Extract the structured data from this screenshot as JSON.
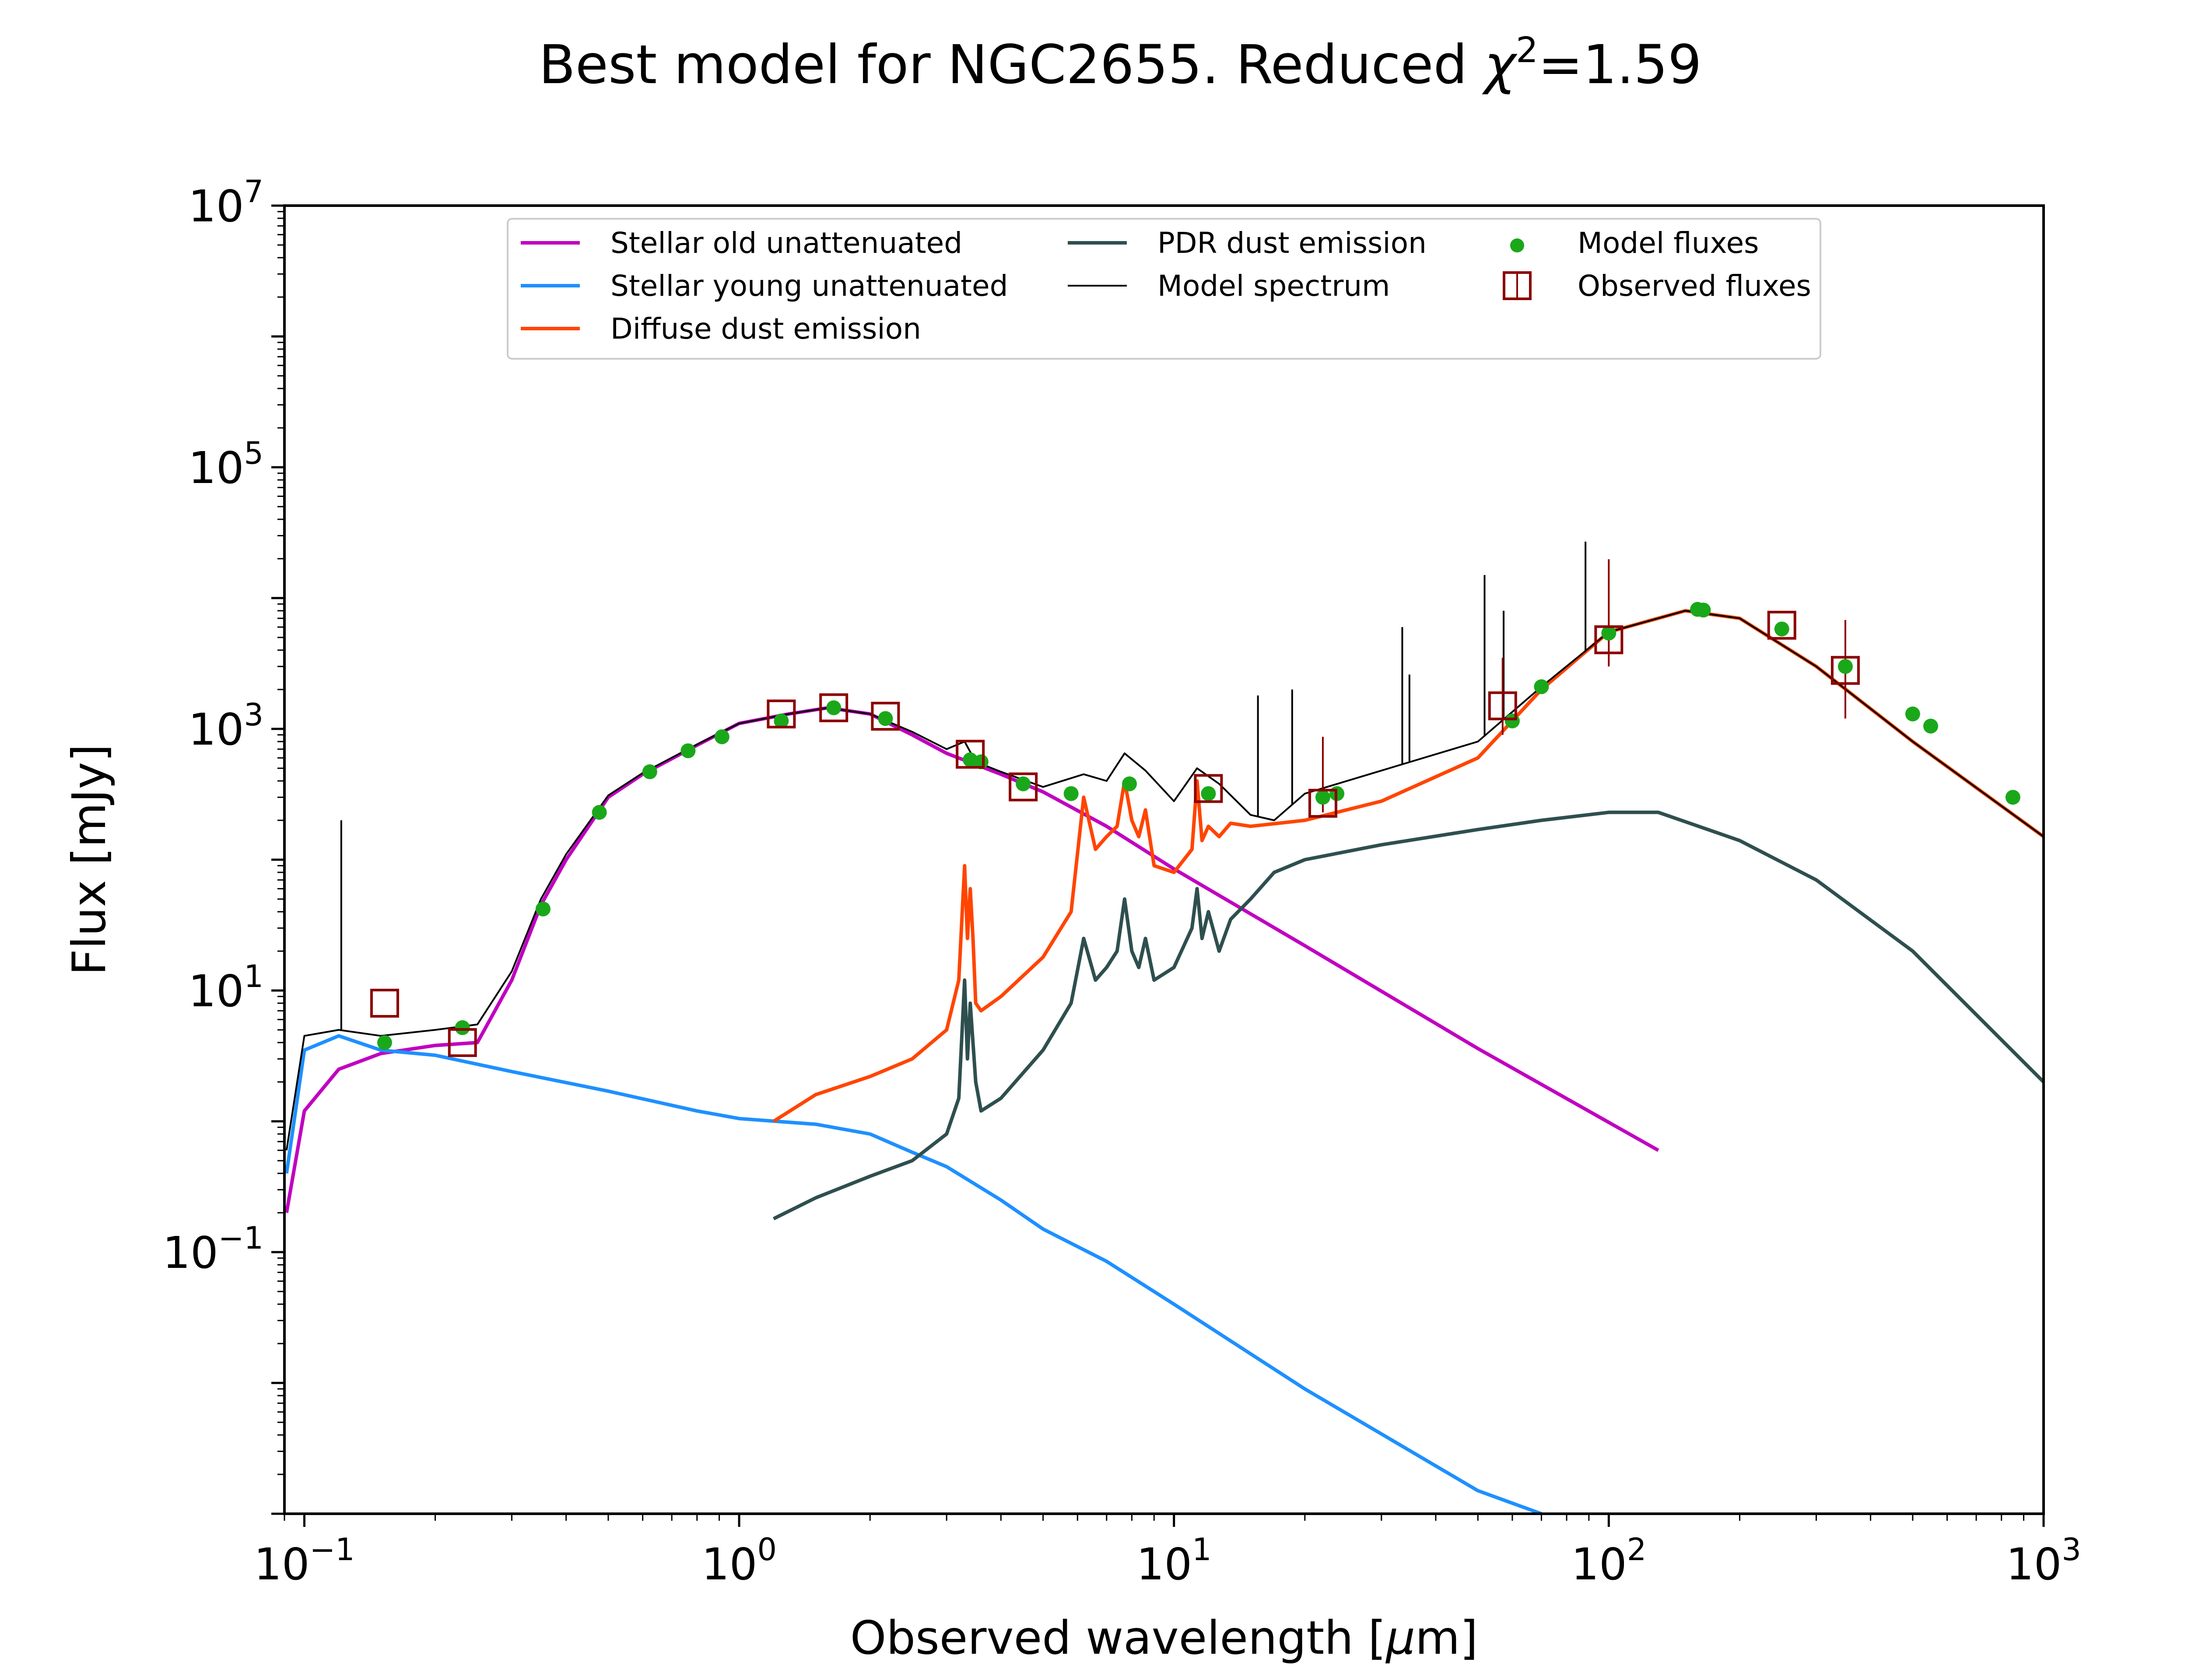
{
  "chart_data": {
    "type": "line",
    "title": "Best model for NGC2655. Reduced χ²=1.59",
    "title_parts": {
      "main": "Best model for NGC2655. Reduced ",
      "chi": "χ",
      "sup": "2",
      "tail": "=1.59"
    },
    "xlabel": "Observed wavelength [μm]",
    "xlabel_parts": {
      "pre": "Observed wavelength [",
      "mu": "μ",
      "post": "m]"
    },
    "ylabel": "Flux [mJy]",
    "x_scale": "log",
    "y_scale": "log",
    "xlim": [
      0.09,
      1000
    ],
    "ylim": [
      0.001,
      10000000
    ],
    "x_ticks": [
      {
        "base": "10",
        "exp": "−1",
        "value": 0.1
      },
      {
        "base": "10",
        "exp": "0",
        "value": 1
      },
      {
        "base": "10",
        "exp": "1",
        "value": 10
      },
      {
        "base": "10",
        "exp": "2",
        "value": 100
      },
      {
        "base": "10",
        "exp": "3",
        "value": 1000
      }
    ],
    "y_ticks": [
      {
        "base": "10",
        "exp": "−1",
        "value": 0.1
      },
      {
        "base": "10",
        "exp": "1",
        "value": 10
      },
      {
        "base": "10",
        "exp": "3",
        "value": 1000
      },
      {
        "base": "10",
        "exp": "5",
        "value": 100000
      },
      {
        "base": "10",
        "exp": "7",
        "value": 10000000
      }
    ],
    "legend_position": "top-center",
    "legend": [
      {
        "label": "Stellar old unattenuated",
        "marker": "line",
        "color": "#c000c0"
      },
      {
        "label": "Stellar young unattenuated",
        "marker": "line",
        "color": "#1e90ff"
      },
      {
        "label": "Diffuse dust emission",
        "marker": "line",
        "color": "#ff4500"
      },
      {
        "label": "PDR dust emission",
        "marker": "line",
        "color": "#2f4f4f"
      },
      {
        "label": "Model spectrum",
        "marker": "thin-line",
        "color": "#000000"
      },
      {
        "label": "Model fluxes",
        "marker": "dot",
        "color": "#1aa81a"
      },
      {
        "label": "Observed fluxes",
        "marker": "square",
        "color": "#8b0000"
      }
    ],
    "series": [
      {
        "name": "Stellar old unattenuated",
        "color": "#c000c0",
        "x": [
          0.091,
          0.1,
          0.12,
          0.15,
          0.2,
          0.25,
          0.3,
          0.35,
          0.4,
          0.5,
          0.6,
          0.8,
          1.0,
          1.3,
          1.6,
          2.0,
          2.5,
          3.0,
          4.0,
          5.0,
          7.0,
          10,
          20,
          50,
          130
        ],
        "y": [
          0.2,
          1.2,
          2.5,
          3.3,
          3.8,
          4.0,
          12,
          45,
          100,
          300,
          450,
          750,
          1100,
          1300,
          1450,
          1300,
          900,
          650,
          450,
          330,
          180,
          85,
          22,
          3.6,
          0.6
        ]
      },
      {
        "name": "Stellar young unattenuated",
        "color": "#1e90ff",
        "x": [
          0.091,
          0.1,
          0.12,
          0.15,
          0.2,
          0.3,
          0.5,
          0.8,
          1.0,
          1.5,
          2.0,
          2.5,
          3.0,
          4.0,
          5.0,
          7.0,
          10,
          20,
          50,
          70
        ],
        "y": [
          0.4,
          3.5,
          4.5,
          3.5,
          3.2,
          2.4,
          1.7,
          1.2,
          1.05,
          0.95,
          0.8,
          0.58,
          0.45,
          0.25,
          0.15,
          0.085,
          0.04,
          0.009,
          0.0015,
          0.001
        ]
      },
      {
        "name": "Diffuse dust emission",
        "color": "#ff4500",
        "x": [
          1.2,
          1.5,
          2.0,
          2.5,
          3.0,
          3.2,
          3.3,
          3.35,
          3.4,
          3.45,
          3.5,
          3.6,
          4.0,
          5.0,
          5.8,
          6.2,
          6.6,
          7.0,
          7.4,
          7.7,
          8.0,
          8.3,
          8.6,
          9.0,
          10.0,
          11.0,
          11.3,
          11.6,
          12.0,
          12.7,
          13.5,
          15,
          20,
          30,
          50,
          70,
          100,
          150,
          200,
          300,
          500,
          1000
        ],
        "y": [
          1.0,
          1.6,
          2.2,
          3.0,
          5,
          12,
          90,
          25,
          60,
          25,
          8,
          7,
          9,
          18,
          40,
          300,
          120,
          150,
          180,
          400,
          200,
          150,
          240,
          90,
          80,
          120,
          400,
          140,
          180,
          150,
          190,
          180,
          200,
          280,
          600,
          2000,
          5500,
          8000,
          7000,
          3000,
          800,
          150
        ]
      },
      {
        "name": "PDR dust emission",
        "color": "#2f4f4f",
        "x": [
          1.2,
          1.5,
          2.0,
          2.5,
          3.0,
          3.2,
          3.3,
          3.35,
          3.4,
          3.5,
          3.6,
          4.0,
          5.0,
          5.8,
          6.2,
          6.6,
          7.0,
          7.4,
          7.7,
          8.0,
          8.3,
          8.6,
          9.0,
          10.0,
          11.0,
          11.3,
          11.6,
          12.0,
          12.7,
          13.5,
          15,
          17,
          20,
          30,
          50,
          70,
          100,
          130,
          200,
          300,
          500,
          1000
        ],
        "y": [
          0.18,
          0.26,
          0.38,
          0.5,
          0.8,
          1.5,
          12,
          3,
          8,
          2,
          1.2,
          1.5,
          3.5,
          8,
          25,
          12,
          15,
          20,
          50,
          20,
          15,
          25,
          12,
          15,
          30,
          60,
          25,
          40,
          20,
          35,
          50,
          80,
          100,
          130,
          170,
          200,
          230,
          230,
          140,
          70,
          20,
          2
        ]
      },
      {
        "name": "Model spectrum",
        "color": "#000000",
        "x": [
          0.091,
          0.1,
          0.12,
          0.15,
          0.2,
          0.25,
          0.3,
          0.35,
          0.4,
          0.5,
          0.6,
          0.8,
          1.0,
          1.3,
          1.6,
          2.0,
          2.5,
          3.0,
          3.3,
          3.5,
          4.0,
          5.0,
          6.2,
          7.0,
          7.7,
          8.6,
          10,
          11.3,
          12.7,
          15,
          17,
          20,
          30,
          50,
          70,
          100,
          150,
          200,
          300,
          500,
          1000
        ],
        "y": [
          0.6,
          4.5,
          5.0,
          4.5,
          5.0,
          5.5,
          14,
          50,
          110,
          310,
          460,
          760,
          1100,
          1300,
          1450,
          1300,
          950,
          700,
          800,
          560,
          470,
          360,
          450,
          400,
          650,
          480,
          280,
          500,
          380,
          220,
          200,
          320,
          480,
          800,
          2100,
          5500,
          8000,
          7000,
          3000,
          800,
          150
        ]
      }
    ],
    "model_spectrum_emission_lines": [
      {
        "x": 0.1216,
        "y_top": 200
      },
      {
        "x": 15.6,
        "y_top": 1800
      },
      {
        "x": 18.7,
        "y_top": 2000
      },
      {
        "x": 33.5,
        "y_top": 6000
      },
      {
        "x": 34.8,
        "y_top": 2600
      },
      {
        "x": 51.8,
        "y_top": 15000
      },
      {
        "x": 57.3,
        "y_top": 8000
      },
      {
        "x": 88.4,
        "y_top": 27000
      }
    ],
    "model_fluxes": {
      "x": [
        0.153,
        0.231,
        0.354,
        0.477,
        0.623,
        0.763,
        0.913,
        1.25,
        1.65,
        2.17,
        3.4,
        3.6,
        4.5,
        5.8,
        7.9,
        12,
        22,
        23.7,
        60,
        70,
        100,
        160,
        165,
        250,
        350,
        500,
        550,
        850
      ],
      "y": [
        4.0,
        5.2,
        42,
        230,
        470,
        680,
        870,
        1150,
        1450,
        1200,
        580,
        560,
        380,
        320,
        380,
        320,
        300,
        320,
        1150,
        2100,
        5400,
        8200,
        8100,
        5800,
        3000,
        1300,
        1050,
        300
      ]
    },
    "observed_fluxes": {
      "x": [
        0.153,
        0.231,
        1.25,
        1.65,
        2.17,
        3.4,
        4.5,
        12,
        22,
        57,
        100,
        250,
        350
      ],
      "y": [
        8.0,
        4.0,
        1300,
        1450,
        1250,
        640,
        360,
        350,
        270,
        1500,
        4800,
        6200,
        2800
      ],
      "err_low": [
        0,
        0,
        0,
        0,
        0,
        0,
        0,
        0,
        40,
        600,
        1800,
        0,
        1600
      ],
      "err_high": [
        0,
        0,
        0,
        0,
        0,
        0,
        0,
        0,
        600,
        2000,
        15000,
        0,
        4000
      ]
    }
  }
}
